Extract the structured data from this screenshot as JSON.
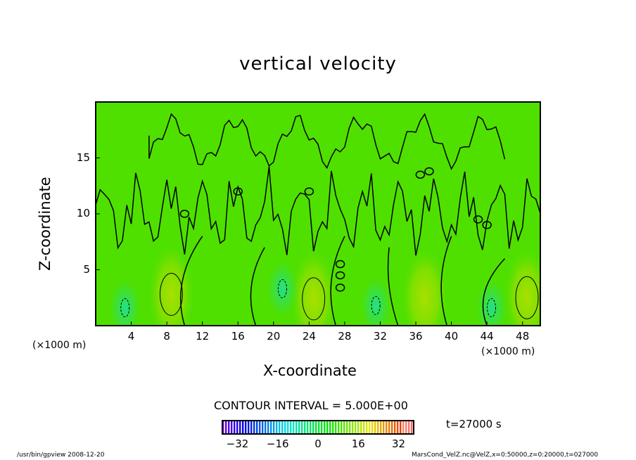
{
  "chart_data": {
    "type": "heatmap",
    "subtype": "filled contour with contour lines",
    "title": "vertical velocity",
    "xlabel": "X-coordinate",
    "ylabel": "Z-coordinate",
    "x_unit": "(×1000 m)",
    "y_unit": "(×1000 m)",
    "xlim": [
      0,
      50
    ],
    "ylim": [
      0,
      20
    ],
    "x_ticks": [
      4,
      8,
      12,
      16,
      20,
      24,
      28,
      32,
      36,
      40,
      44,
      48
    ],
    "y_ticks": [
      5,
      10,
      15
    ],
    "contour_interval": "CONTOUR INTERVAL = 5.000E+00",
    "colorbar": {
      "range": [
        -38,
        38
      ],
      "ticks": [
        -32,
        -16,
        0,
        16,
        32
      ]
    },
    "positive_cells": [
      {
        "x": 8.5,
        "z": 2.8
      },
      {
        "x": 24.5,
        "z": 2.4
      },
      {
        "x": 48.5,
        "z": 2.5
      },
      {
        "x": 37,
        "z": 2.5
      }
    ],
    "negative_cells": [
      {
        "x": 3.3,
        "z": 1.6
      },
      {
        "x": 31.5,
        "z": 1.8
      },
      {
        "x": 44.5,
        "z": 1.6
      },
      {
        "x": 21,
        "z": 3.3
      }
    ]
  },
  "time_label": "t=27000 s",
  "footer_left": "/usr/bin/gpview  2008-12-20",
  "footer_right": "MarsCond_VelZ.nc@VelZ,x=0:50000,z=0:20000,t=027000"
}
